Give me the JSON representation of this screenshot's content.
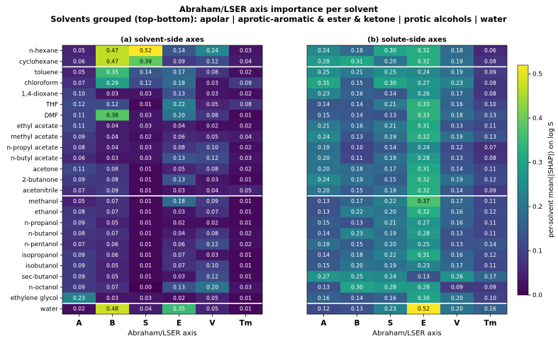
{
  "title": "Abraham/LSER axis importance per solvent",
  "subtitle": "Solvents grouped (top-bottom): apolar | aprotic-aromatic & ester & ketone | protic alcohols | water",
  "chart_data": {
    "type": "heatmap",
    "solvents": [
      "n-hexane",
      "cyclohexane",
      "toluene",
      "chloroform",
      "1,4-dioxane",
      "THF",
      "DMF",
      "ethyl acetate",
      "methyl acetate",
      "n-propyl acetate",
      "n-butyl acetate",
      "acetone",
      "2-butanone",
      "acetonitrile",
      "methanol",
      "ethanol",
      "n-propanol",
      "n-butanol",
      "n-pentanol",
      "isopropanol",
      "isobutanol",
      "sec-butanol",
      "n-octanol",
      "ethylene glycol",
      "water"
    ],
    "axes": [
      "A",
      "B",
      "S",
      "E",
      "V",
      "Tm"
    ],
    "xlabel": "Abraham/LSER axis",
    "group_boundaries_after_row": [
      1,
      13,
      23
    ],
    "colorbar": {
      "label": "per-solvent mean(|SHAP|) on log S",
      "min": 0.0,
      "max": 0.52,
      "ticks": [
        0.0,
        0.1,
        0.2,
        0.3,
        0.4,
        0.5
      ],
      "colormap": "viridis"
    },
    "panels": [
      {
        "title": "(a) solvent-side axes",
        "values": [
          [
            0.05,
            0.47,
            0.52,
            0.14,
            0.24,
            0.03
          ],
          [
            0.06,
            0.47,
            0.39,
            0.09,
            0.12,
            0.04
          ],
          [
            0.05,
            0.35,
            0.14,
            0.17,
            0.08,
            0.02
          ],
          [
            0.07,
            0.29,
            0.12,
            0.18,
            0.03,
            0.09
          ],
          [
            0.1,
            0.03,
            0.03,
            0.13,
            0.03,
            0.02
          ],
          [
            0.12,
            0.12,
            0.01,
            0.22,
            0.05,
            0.08
          ],
          [
            0.11,
            0.38,
            0.03,
            0.2,
            0.08,
            0.01
          ],
          [
            0.11,
            0.04,
            0.03,
            0.04,
            0.02,
            0.02
          ],
          [
            0.09,
            0.04,
            0.02,
            0.06,
            0.05,
            0.04
          ],
          [
            0.08,
            0.04,
            0.03,
            0.08,
            0.1,
            0.02
          ],
          [
            0.06,
            0.03,
            0.03,
            0.13,
            0.12,
            0.03
          ],
          [
            0.11,
            0.08,
            0.01,
            0.05,
            0.08,
            0.02
          ],
          [
            0.09,
            0.08,
            0.01,
            0.13,
            0.03,
            0.01
          ],
          [
            0.07,
            0.09,
            0.01,
            0.03,
            0.04,
            0.05
          ],
          [
            0.05,
            0.07,
            0.01,
            0.18,
            0.09,
            0.01
          ],
          [
            0.08,
            0.07,
            0.01,
            0.03,
            0.07,
            0.01
          ],
          [
            0.09,
            0.05,
            0.01,
            0.02,
            0.02,
            0.01
          ],
          [
            0.08,
            0.07,
            0.01,
            0.04,
            0.08,
            0.02
          ],
          [
            0.07,
            0.06,
            0.01,
            0.06,
            0.12,
            0.02
          ],
          [
            0.09,
            0.06,
            0.01,
            0.07,
            0.03,
            0.01
          ],
          [
            0.09,
            0.05,
            0.01,
            0.07,
            0.1,
            0.01
          ],
          [
            0.09,
            0.05,
            0.01,
            0.03,
            0.12,
            0.01
          ],
          [
            0.09,
            0.07,
            0.0,
            0.13,
            0.2,
            0.03
          ],
          [
            0.23,
            0.03,
            0.03,
            0.02,
            0.05,
            0.01
          ],
          [
            0.02,
            0.48,
            0.04,
            0.35,
            0.05,
            0.01
          ]
        ]
      },
      {
        "title": "(b) solute-side axes",
        "values": [
          [
            0.24,
            0.18,
            0.3,
            0.32,
            0.18,
            0.06
          ],
          [
            0.28,
            0.31,
            0.2,
            0.32,
            0.19,
            0.08
          ],
          [
            0.25,
            0.21,
            0.25,
            0.24,
            0.19,
            0.09
          ],
          [
            0.31,
            0.15,
            0.3,
            0.27,
            0.23,
            0.08
          ],
          [
            0.23,
            0.16,
            0.14,
            0.26,
            0.17,
            0.08
          ],
          [
            0.14,
            0.14,
            0.21,
            0.33,
            0.16,
            0.1
          ],
          [
            0.15,
            0.14,
            0.13,
            0.33,
            0.18,
            0.13
          ],
          [
            0.21,
            0.16,
            0.21,
            0.31,
            0.13,
            0.11
          ],
          [
            0.24,
            0.13,
            0.19,
            0.32,
            0.19,
            0.13
          ],
          [
            0.19,
            0.1,
            0.14,
            0.24,
            0.12,
            0.07
          ],
          [
            0.2,
            0.11,
            0.19,
            0.28,
            0.13,
            0.08
          ],
          [
            0.2,
            0.18,
            0.17,
            0.31,
            0.14,
            0.11
          ],
          [
            0.24,
            0.19,
            0.15,
            0.32,
            0.19,
            0.12
          ],
          [
            0.2,
            0.15,
            0.19,
            0.32,
            0.14,
            0.09
          ],
          [
            0.13,
            0.17,
            0.22,
            0.37,
            0.17,
            0.11
          ],
          [
            0.13,
            0.22,
            0.2,
            0.32,
            0.16,
            0.12
          ],
          [
            0.15,
            0.13,
            0.21,
            0.27,
            0.16,
            0.11
          ],
          [
            0.14,
            0.23,
            0.19,
            0.28,
            0.13,
            0.11
          ],
          [
            0.19,
            0.15,
            0.2,
            0.25,
            0.13,
            0.14
          ],
          [
            0.14,
            0.18,
            0.22,
            0.31,
            0.16,
            0.12
          ],
          [
            0.15,
            0.2,
            0.19,
            0.23,
            0.17,
            0.11
          ],
          [
            0.27,
            0.25,
            0.24,
            0.13,
            0.26,
            0.17
          ],
          [
            0.13,
            0.3,
            0.28,
            0.28,
            0.09,
            0.09
          ],
          [
            0.16,
            0.14,
            0.16,
            0.3,
            0.2,
            0.1
          ],
          [
            0.12,
            0.13,
            0.23,
            0.52,
            0.2,
            0.16
          ]
        ]
      }
    ]
  }
}
